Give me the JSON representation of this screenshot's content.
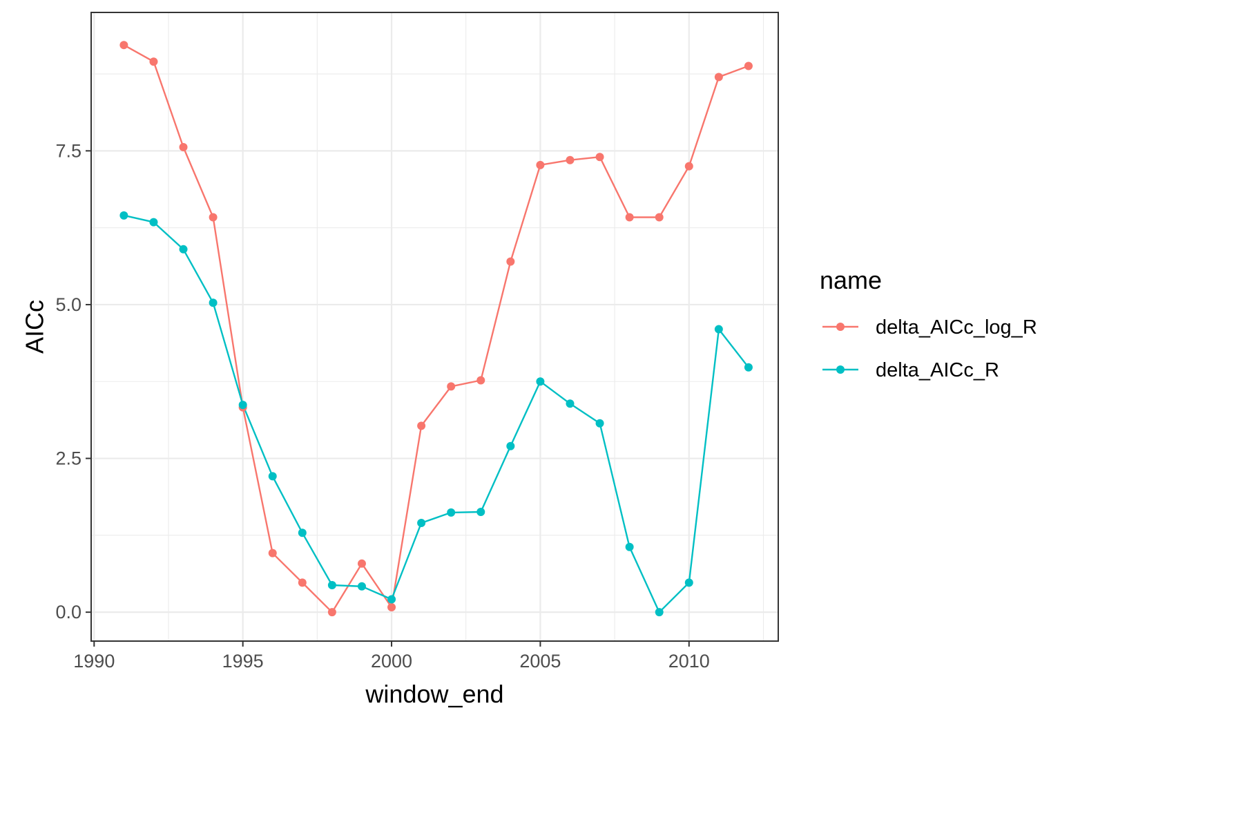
{
  "chart_data": {
    "type": "line",
    "title": "",
    "xlabel": "window_end",
    "ylabel": "AICc",
    "xlim": [
      1989.9,
      2013.0
    ],
    "ylim": [
      -0.47,
      9.75
    ],
    "xticks": [
      1990,
      1995,
      2000,
      2005,
      2010
    ],
    "xtick_labels": [
      "1990",
      "1995",
      "2000",
      "2005",
      "2010"
    ],
    "yticks": [
      0,
      2.5,
      5,
      7.5
    ],
    "ytick_labels": [
      "0.0",
      "2.5",
      "5.0",
      "7.5"
    ],
    "grid": true,
    "legend": {
      "title": "name",
      "placement": "right"
    },
    "x": [
      1991,
      1992,
      1993,
      1994,
      1995,
      1996,
      1997,
      1998,
      1999,
      2000,
      2001,
      2002,
      2003,
      2004,
      2005,
      2006,
      2007,
      2008,
      2009,
      2010,
      2011,
      2012
    ],
    "series": [
      {
        "name": "delta_AICc_log_R",
        "color": "#F8766D",
        "values": [
          9.22,
          8.95,
          7.56,
          6.42,
          3.33,
          0.96,
          0.48,
          0.0,
          0.79,
          0.08,
          3.03,
          3.67,
          3.77,
          5.7,
          7.27,
          7.35,
          7.4,
          6.42,
          6.42,
          7.25,
          8.7,
          8.88
        ]
      },
      {
        "name": "delta_AICc_R",
        "color": "#00BFC4",
        "values": [
          6.45,
          6.34,
          5.9,
          5.03,
          3.37,
          2.21,
          1.29,
          0.44,
          0.42,
          0.21,
          1.45,
          1.62,
          1.63,
          2.7,
          3.75,
          3.39,
          3.07,
          1.06,
          0.0,
          0.48,
          4.6,
          3.98
        ]
      }
    ]
  }
}
